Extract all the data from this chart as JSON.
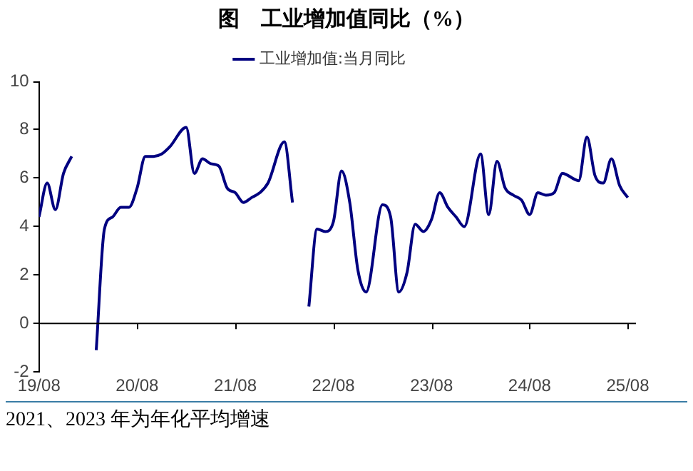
{
  "chart_data": {
    "type": "line",
    "title": "图　工业增加值同比（%）",
    "legend": "top",
    "line_style": "solid",
    "marker": "none",
    "annotations": [
      "2021、2023 年为年化平均增速"
    ],
    "xlim": [
      "2019-08",
      "2025-09"
    ],
    "xticks": [
      {
        "value": "2019-08",
        "label": "19/08"
      },
      {
        "value": "2020-08",
        "label": "20/08"
      },
      {
        "value": "2021-08",
        "label": "21/08"
      },
      {
        "value": "2022-08",
        "label": "22/08"
      },
      {
        "value": "2023-08",
        "label": "23/08"
      },
      {
        "value": "2024-08",
        "label": "24/08"
      },
      {
        "value": "2025-08",
        "label": "25/08"
      }
    ],
    "ylim": [
      -2,
      10
    ],
    "yticks": [
      -2,
      0,
      2,
      4,
      6,
      8,
      10
    ],
    "series": [
      {
        "name": "工业增加值:当月同比",
        "color": "#000080",
        "x": [
          "2019-08",
          "2019-09",
          "2019-10",
          "2019-11",
          "2019-12",
          "2020-02",
          "2020-03",
          "2020-04",
          "2020-05",
          "2020-06",
          "2020-07",
          "2020-08",
          "2020-09",
          "2020-10",
          "2020-11",
          "2020-12",
          "2021-02",
          "2021-03",
          "2021-04",
          "2021-05",
          "2021-06",
          "2021-07",
          "2021-08",
          "2021-09",
          "2021-10",
          "2021-11",
          "2021-12",
          "2022-02",
          "2022-03",
          "2022-04",
          "2022-05",
          "2022-06",
          "2022-07",
          "2022-08",
          "2022-09",
          "2022-10",
          "2022-11",
          "2022-12",
          "2023-02",
          "2023-03",
          "2023-04",
          "2023-05",
          "2023-06",
          "2023-07",
          "2023-08",
          "2023-09",
          "2023-10",
          "2023-11",
          "2023-12",
          "2024-02",
          "2024-03",
          "2024-04",
          "2024-05",
          "2024-06",
          "2024-07",
          "2024-08",
          "2024-09",
          "2024-10",
          "2024-11",
          "2024-12",
          "2025-02",
          "2025-03",
          "2025-04",
          "2025-05",
          "2025-06",
          "2025-07",
          "2025-08"
        ],
        "values": [
          4.4,
          5.8,
          4.7,
          6.2,
          6.9,
          null,
          -1.1,
          3.9,
          4.4,
          4.8,
          4.8,
          5.6,
          6.9,
          6.9,
          7.0,
          7.3,
          8.1,
          6.2,
          6.8,
          6.6,
          6.5,
          5.6,
          5.4,
          5.0,
          5.2,
          5.4,
          5.8,
          7.5,
          5.0,
          null,
          0.7,
          3.9,
          3.8,
          4.2,
          6.3,
          5.0,
          2.2,
          1.3,
          4.9,
          4.4,
          1.3,
          2.1,
          4.1,
          3.8,
          4.3,
          5.4,
          4.8,
          4.4,
          4.0,
          7.0,
          4.5,
          6.7,
          5.6,
          5.3,
          5.1,
          4.5,
          5.4,
          5.3,
          5.4,
          6.2,
          5.9,
          7.7,
          6.1,
          5.8,
          6.8,
          5.7,
          5.2
        ]
      }
    ]
  }
}
